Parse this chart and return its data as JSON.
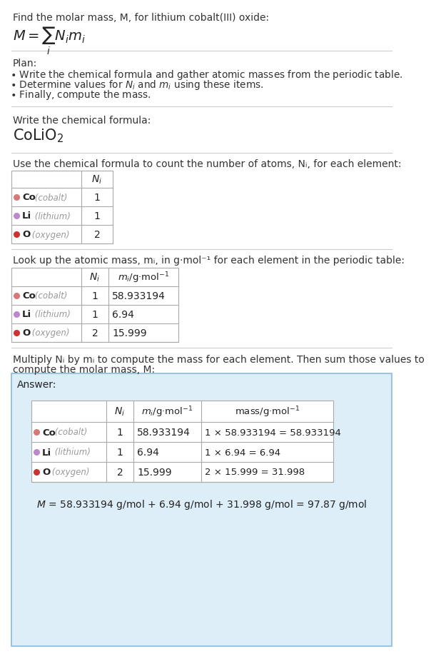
{
  "title_text": "Find the molar mass, M, for lithium cobalt(III) oxide:",
  "bg_color": "#ffffff",
  "section_bg": "#ddeef8",
  "ans_border": "#88bbdd",
  "table_border": "#aaaaaa",
  "text_color": "#333333",
  "gray_text": "#999999",
  "dark_text": "#222222",
  "elements": [
    {
      "symbol": "Co",
      "name": "cobalt",
      "color": "#d87878",
      "Ni": 1,
      "mi": "58.933194",
      "mass_eq": "1 × 58.933194 = 58.933194"
    },
    {
      "symbol": "Li",
      "name": "lithium",
      "color": "#bb88cc",
      "Ni": 1,
      "mi": "6.94",
      "mass_eq": "1 × 6.94 = 6.94"
    },
    {
      "symbol": "O",
      "name": "oxygen",
      "color": "#cc3333",
      "Ni": 2,
      "mi": "15.999",
      "mass_eq": "2 × 15.999 = 31.998"
    }
  ],
  "plan_label": "Plan:",
  "plan_bullets": [
    "• Write the chemical formula and gather atomic masses from the periodic table.",
    "• Determine values for Nᵢ and mᵢ using these items.",
    "• Finally, compute the mass."
  ],
  "formula_label": "Write the chemical formula:",
  "count_label": "Use the chemical formula to count the number of atoms, Nᵢ, for each element:",
  "lookup_label": "Look up the atomic mass, mᵢ, in g·mol⁻¹ for each element in the periodic table:",
  "multiply_label1": "Multiply Nᵢ by mᵢ to compute the mass for each element. Then sum those values to",
  "multiply_label2": "compute the molar mass, M:",
  "answer_label": "Answer:",
  "final_eq": "M = 58.933194 g/mol + 6.94 g/mol + 31.998 g/mol = 97.87 g/mol"
}
